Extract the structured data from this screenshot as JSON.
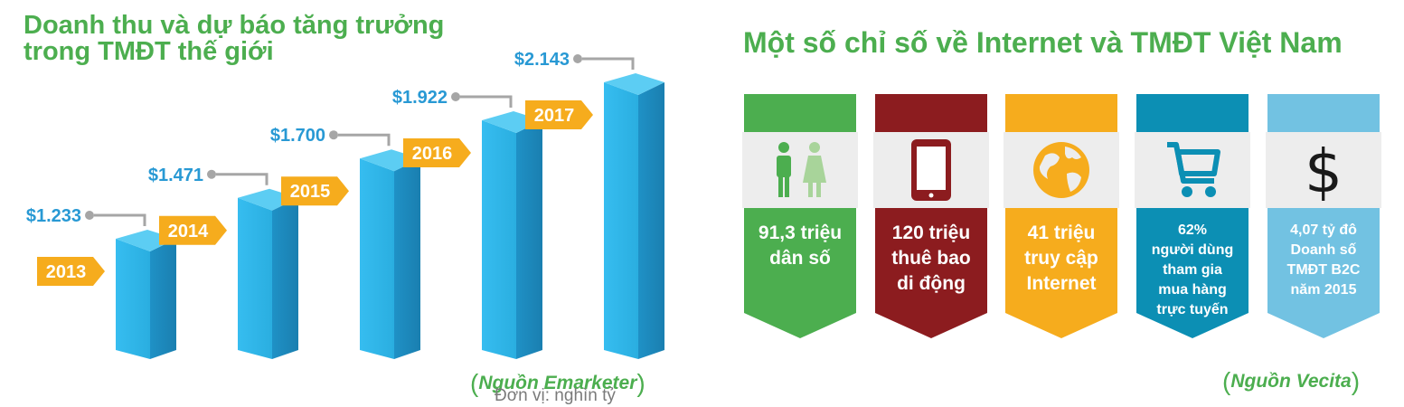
{
  "left_title": [
    "Doanh thu và dự báo tăng trưởng",
    "trong TMĐT thế giới"
  ],
  "right_title": "Một số chỉ số về Internet và TMĐT Việt Nam",
  "chart_data": {
    "type": "bar",
    "title": "Doanh thu và dự báo tăng trưởng trong TMĐT thế giới",
    "categories": [
      "2013",
      "2014",
      "2015",
      "2016",
      "2017"
    ],
    "values": [
      1.233,
      1.471,
      1.7,
      1.922,
      2.143
    ],
    "value_labels": [
      "$1.233",
      "$1.471",
      "$1.700",
      "$1.922",
      "$2.143"
    ],
    "unit": "Đơn vị: nghìn tỷ",
    "source": "Nguồn Emarketer",
    "colors": {
      "bar_front": "#2aaee0",
      "bar_side": "#1a7fb0",
      "bar_top": "#5ccdf3",
      "year_tag": "#f6ac1d",
      "value_label": "#2899d4",
      "leader": "#a6a6a6"
    }
  },
  "source_left": "Nguồn Emarketer",
  "unit_note": "Đơn vị: nghìn tỷ",
  "source_right": "Nguồn Vecita",
  "cards": [
    {
      "icon": "people-icon",
      "color": "#4cae4f",
      "lines": [
        "91,3 triệu",
        "dân số"
      ],
      "size": "big"
    },
    {
      "icon": "tablet-icon",
      "color": "#8c1c1f",
      "lines": [
        "120 triệu",
        "thuê bao",
        "di động"
      ],
      "size": "big"
    },
    {
      "icon": "globe-icon",
      "color": "#f6ac1d",
      "lines": [
        "41 triệu",
        "truy cập",
        "Internet"
      ],
      "size": "big"
    },
    {
      "icon": "cart-icon",
      "color": "#0c8fb4",
      "lines": [
        "62%",
        "người dùng",
        "tham gia",
        "mua hàng",
        "trực tuyến"
      ],
      "size": "small"
    },
    {
      "icon": "dollar-icon",
      "color": "#72c2e2",
      "lines": [
        "4,07 tỷ đô",
        "Doanh số",
        "TMĐT B2C",
        "năm 2015"
      ],
      "size": "small"
    }
  ]
}
